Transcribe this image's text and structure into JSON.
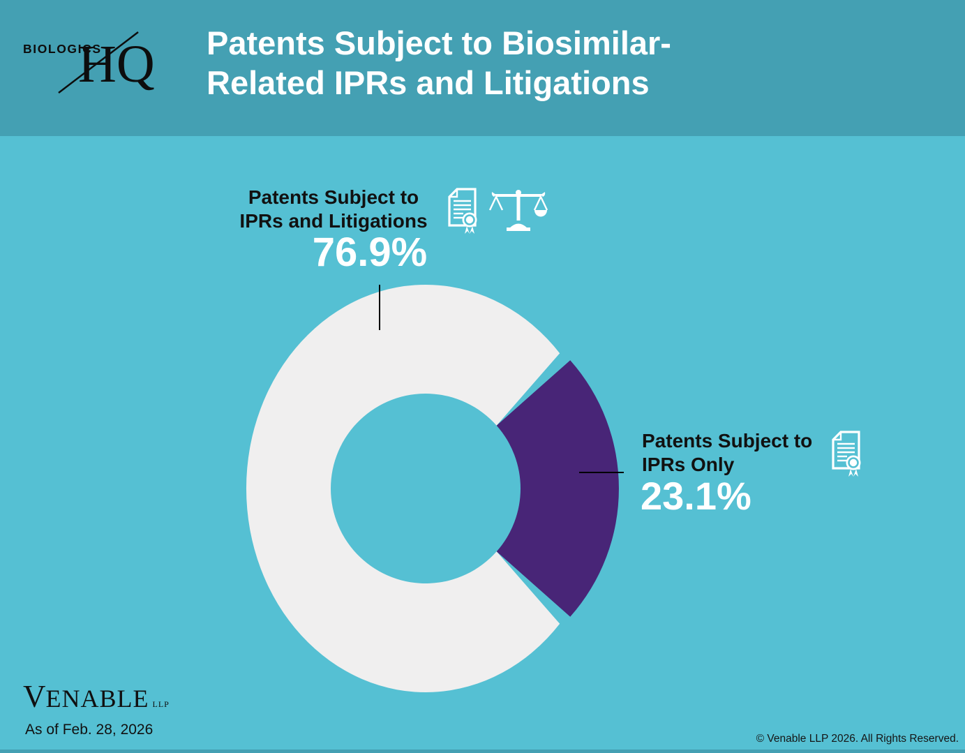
{
  "header": {
    "brand": {
      "line1": "BIOLOGICS",
      "line2": "HQ"
    },
    "title": "Patents Subject to Biosimilar-Related IPRs and Litigations"
  },
  "chart_data": {
    "type": "pie",
    "subtype": "donut",
    "title": "Patents Subject to Biosimilar-Related IPRs and Litigations",
    "legend_position": "callouts",
    "slices": [
      {
        "label": "Patents Subject to IPRs and Litigations",
        "value": 76.9,
        "pct_label": "76.9%",
        "color": "#f0efef",
        "icons": [
          "certificate-document-icon",
          "scales-of-justice-icon"
        ]
      },
      {
        "label": "Patents Subject to IPRs Only",
        "value": 23.1,
        "pct_label": "23.1%",
        "color": "#482577",
        "icons": [
          "certificate-document-icon"
        ],
        "emphasized": true
      }
    ]
  },
  "footer": {
    "firm": "Venable",
    "firm_suffix": "LLP",
    "as_of": "As of Feb. 28, 2026",
    "copyright": "© Venable LLP 2026. All Rights Reserved."
  },
  "colors": {
    "background": "#55c0d3",
    "band": "#44a0b3",
    "slice_major": "#f0efef",
    "slice_minor": "#482577",
    "text_dark": "#111111",
    "text_light": "#ffffff"
  }
}
